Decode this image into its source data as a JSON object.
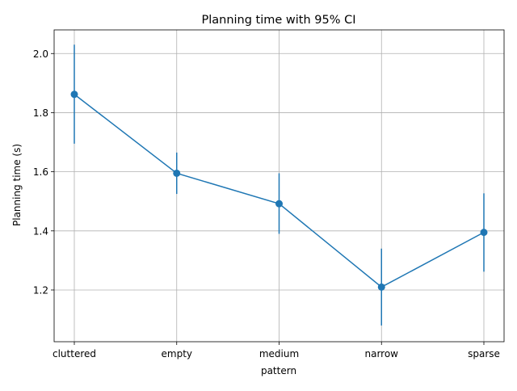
{
  "chart_data": {
    "type": "line",
    "title": "Planning time with 95% CI",
    "xlabel": "pattern",
    "ylabel": "Planning time (s)",
    "categories": [
      "cluttered",
      "empty",
      "medium",
      "narrow",
      "sparse"
    ],
    "series": [
      {
        "values": [
          1.862,
          1.595,
          1.492,
          1.21,
          1.395
        ],
        "ci_lower": [
          1.695,
          1.525,
          1.39,
          1.08,
          1.262
        ],
        "ci_upper": [
          2.03,
          1.665,
          1.595,
          1.34,
          1.527
        ],
        "color": "#1f77b4",
        "marker": "circle",
        "error_bars": "vertical"
      }
    ],
    "yticks": [
      "1.2",
      "1.4",
      "1.6",
      "1.8",
      "2.0"
    ],
    "ylim": [
      1.025,
      2.08
    ],
    "grid": true,
    "legend": "none"
  }
}
